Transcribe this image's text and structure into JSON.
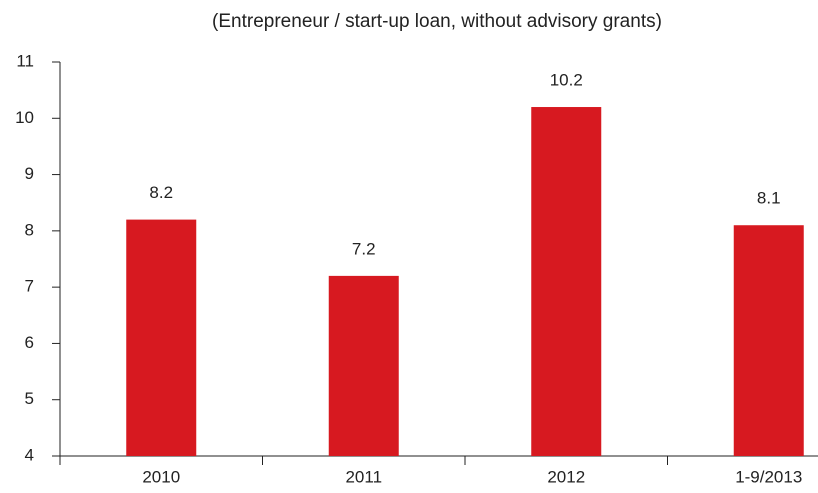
{
  "chart_data": {
    "type": "bar",
    "title": "(Entrepreneur / start-up loan, without advisory grants)",
    "categories": [
      "2010",
      "2011",
      "2012",
      "1-9/2013"
    ],
    "values": [
      8.2,
      7.2,
      10.2,
      8.1
    ],
    "color": "#d71920",
    "ylim": [
      4,
      11
    ],
    "yticks": [
      4,
      5,
      6,
      7,
      8,
      9,
      10,
      11
    ],
    "grid": false
  }
}
